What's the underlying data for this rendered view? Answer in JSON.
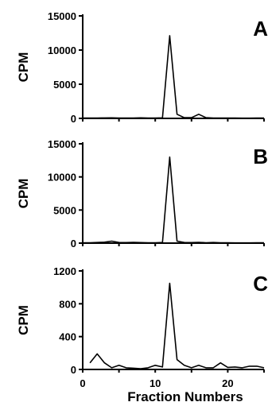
{
  "chart_data": [
    {
      "type": "line",
      "panel_label": "A",
      "ylabel": "CPM",
      "ylim": [
        0,
        15000
      ],
      "yticks": [
        "0",
        "5000",
        "10000",
        "15000"
      ],
      "xlim": [
        0,
        25
      ],
      "x": [
        0,
        1,
        2,
        3,
        4,
        5,
        6,
        7,
        8,
        9,
        10,
        11,
        12,
        13,
        14,
        15,
        16,
        17,
        18,
        19,
        20,
        21,
        22,
        23,
        24,
        25
      ],
      "series": [
        {
          "values": [
            50,
            60,
            60,
            70,
            80,
            60,
            50,
            60,
            80,
            60,
            50,
            80,
            12100,
            600,
            100,
            100,
            600,
            100,
            60,
            50,
            50,
            50,
            40,
            40,
            50,
            50
          ]
        }
      ]
    },
    {
      "type": "line",
      "panel_label": "B",
      "ylabel": "CPM",
      "ylim": [
        0,
        15000
      ],
      "yticks": [
        "0",
        "5000",
        "10000",
        "15000"
      ],
      "xlim": [
        0,
        25
      ],
      "x": [
        0,
        1,
        2,
        3,
        4,
        5,
        6,
        7,
        8,
        9,
        10,
        11,
        12,
        13,
        14,
        15,
        16,
        17,
        18,
        19,
        20,
        21,
        22,
        23,
        24,
        25
      ],
      "series": [
        {
          "values": [
            50,
            60,
            100,
            150,
            300,
            100,
            80,
            120,
            80,
            60,
            60,
            100,
            13000,
            300,
            100,
            80,
            120,
            60,
            100,
            50,
            50,
            40,
            40,
            40,
            50,
            50
          ]
        }
      ]
    },
    {
      "type": "line",
      "panel_label": "C",
      "ylabel": "CPM",
      "ylim": [
        0,
        1200
      ],
      "yticks": [
        "0",
        "400",
        "800",
        "1200"
      ],
      "xlim": [
        0,
        25
      ],
      "xticks": [
        "0",
        "10",
        "20"
      ],
      "xlabel": "Fraction Numbers",
      "x": [
        1,
        2,
        3,
        4,
        5,
        6,
        7,
        8,
        9,
        10,
        11,
        12,
        13,
        14,
        15,
        16,
        17,
        18,
        19,
        20,
        21,
        22,
        23,
        24,
        25
      ],
      "series": [
        {
          "values": [
            80,
            190,
            80,
            20,
            50,
            20,
            15,
            10,
            20,
            50,
            30,
            1050,
            120,
            50,
            20,
            50,
            20,
            20,
            80,
            25,
            30,
            20,
            40,
            40,
            20
          ]
        }
      ]
    }
  ]
}
